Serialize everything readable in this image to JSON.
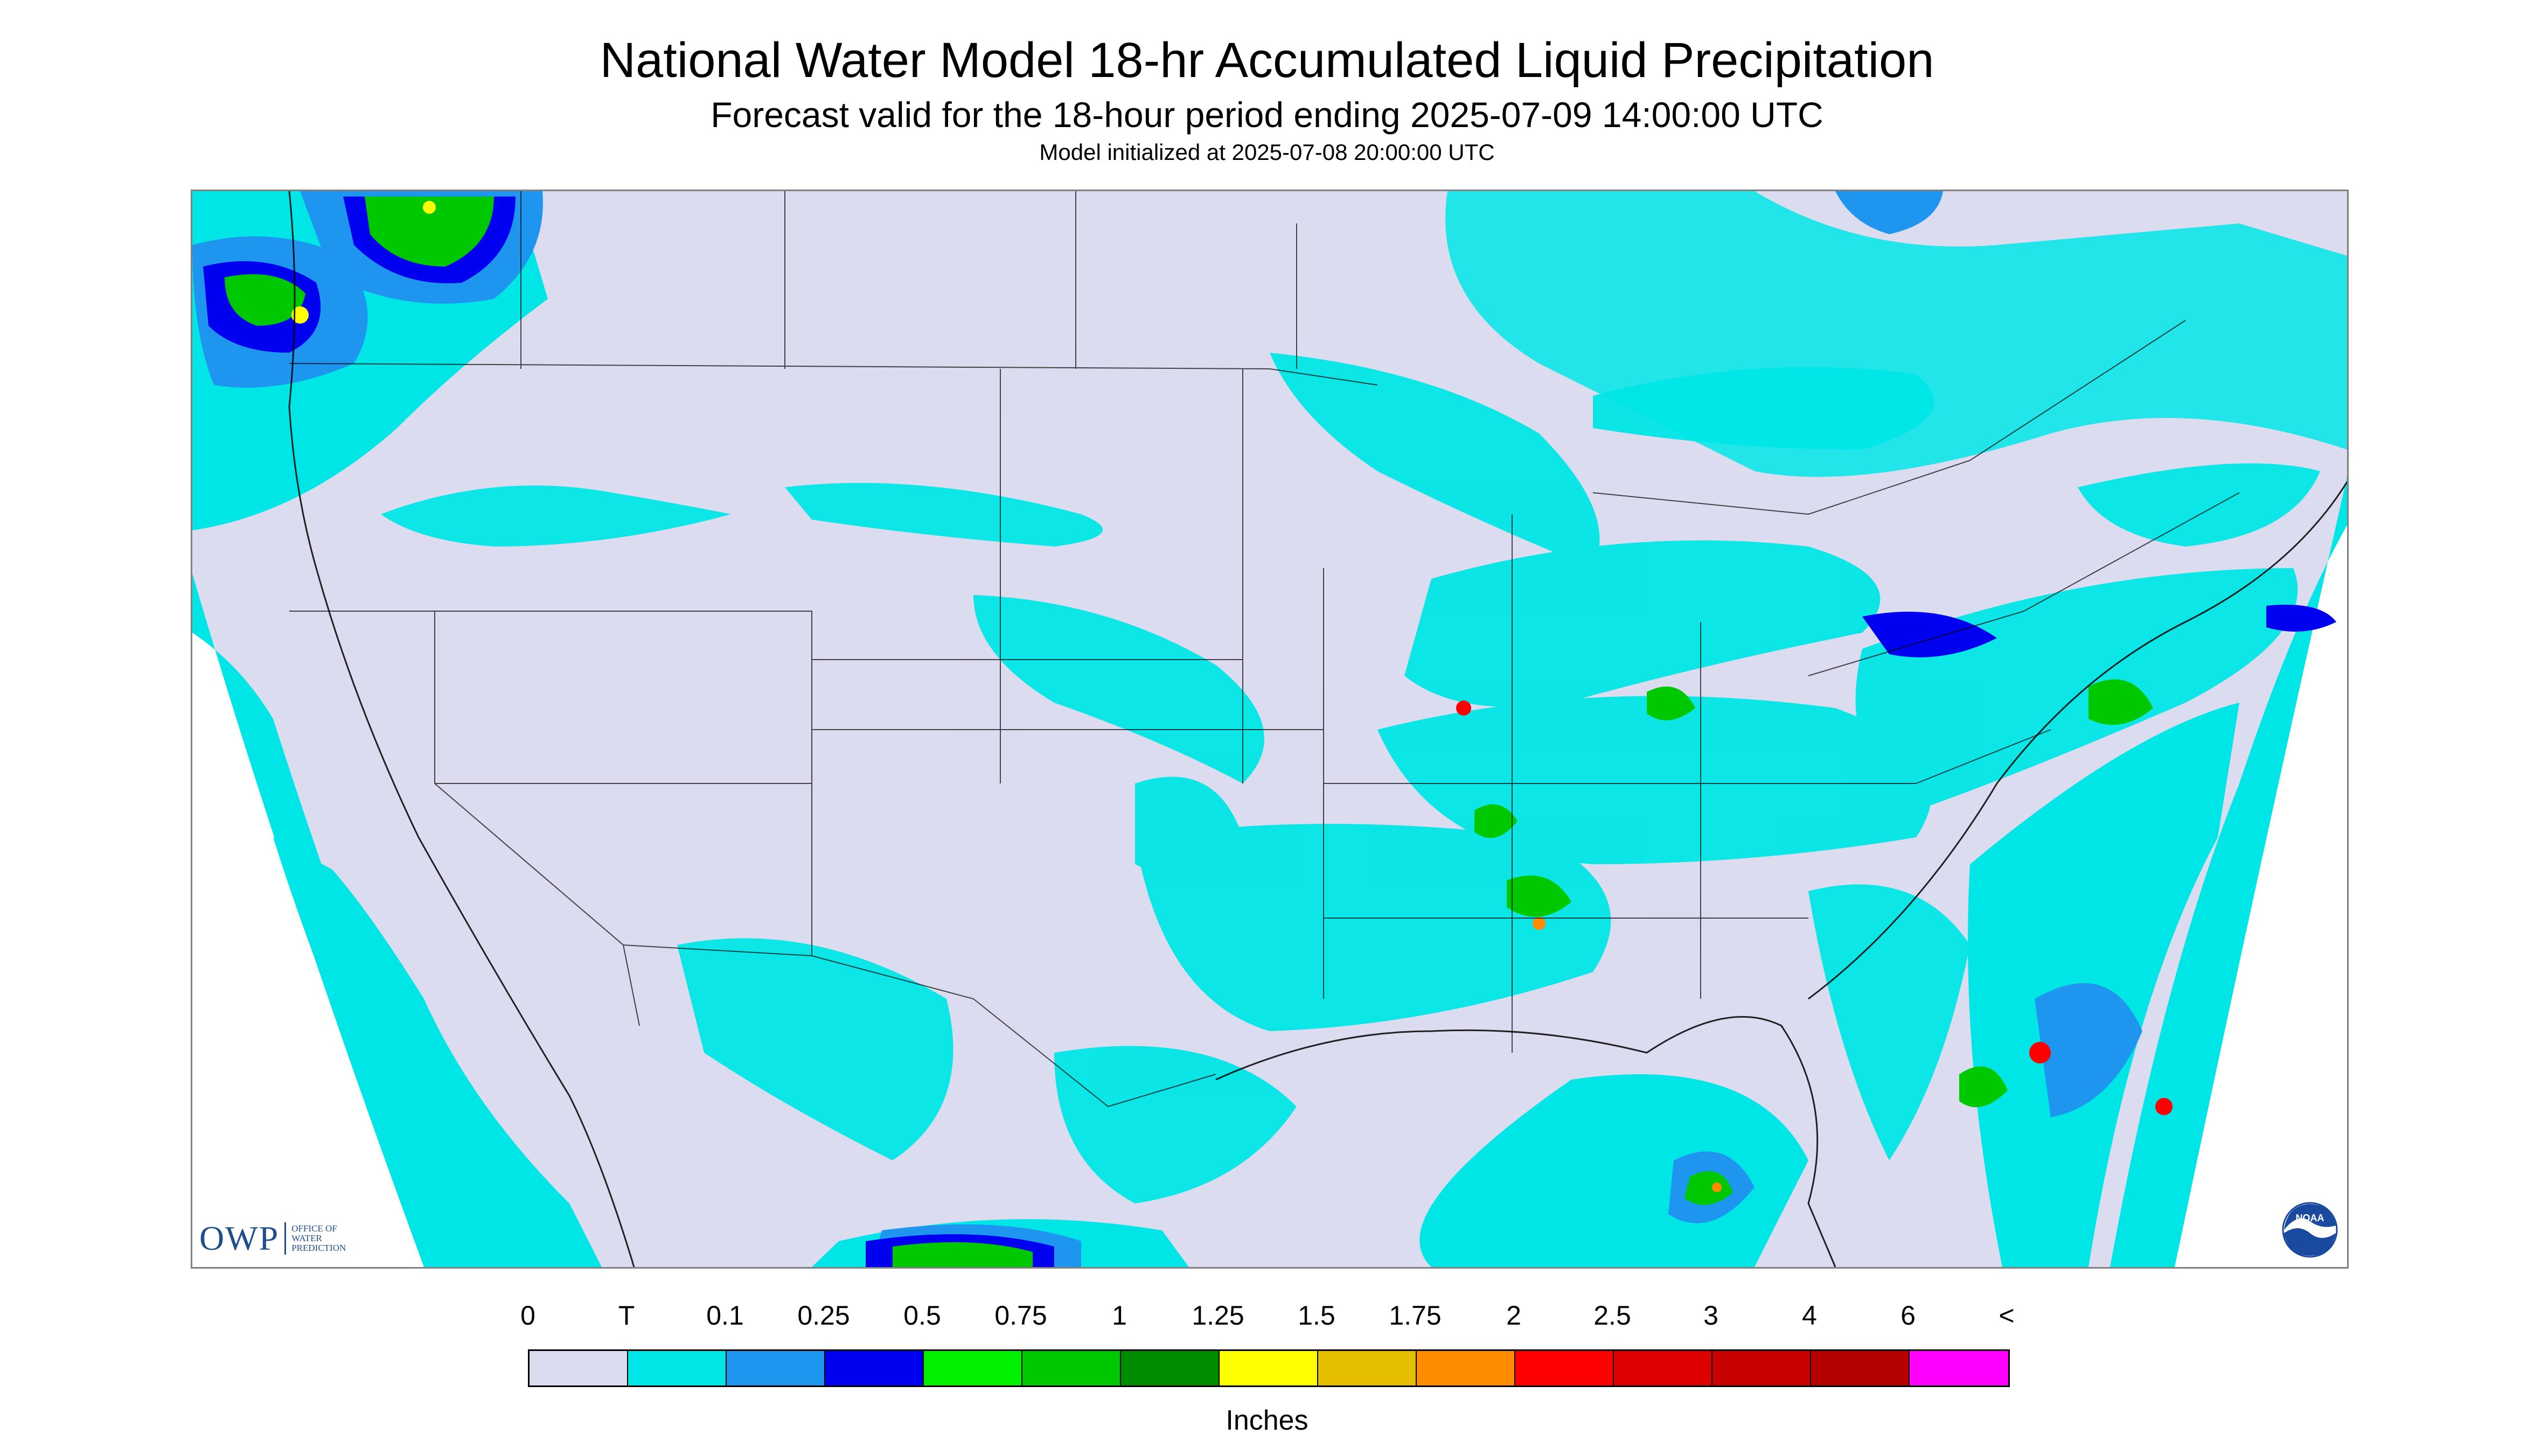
{
  "title": "National Water Model 18-hr Accumulated Liquid Precipitation",
  "subtitle": "Forecast valid for the 18-hour period ending 2025-07-09 14:00:00 UTC",
  "init_text": "Model initialized at 2025-07-08 20:00:00 UTC",
  "map": {
    "background_color": "#dcdcf0",
    "out_of_domain_color": "#ffffff",
    "boundary_color": "#000000"
  },
  "logos": {
    "owp_main": "OWP",
    "owp_sub_1": "OFFICE OF",
    "owp_sub_2": "WATER",
    "owp_sub_3": "PREDICTION",
    "noaa": "NOAA"
  },
  "legend": {
    "units": "Inches",
    "labels": [
      "0",
      "T",
      "0.1",
      "0.25",
      "0.5",
      "0.75",
      "1",
      "1.25",
      "1.5",
      "1.75",
      "2",
      "2.5",
      "3",
      "4",
      "6",
      "<"
    ],
    "colors": [
      "#dcdcf0",
      "#00e6e6",
      "#1e96f0",
      "#0000f0",
      "#00f000",
      "#00c800",
      "#008c00",
      "#ffff00",
      "#e6be00",
      "#ff8c00",
      "#ff0000",
      "#dc0000",
      "#c80000",
      "#b40000",
      "#ff00ff",
      "#9650c8"
    ]
  }
}
